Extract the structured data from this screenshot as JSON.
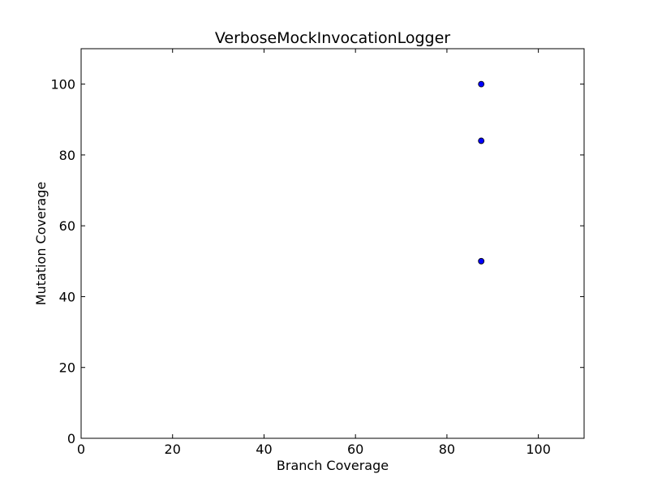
{
  "chart_data": {
    "type": "scatter",
    "title": "VerboseMockInvocationLogger",
    "xlabel": "Branch Coverage",
    "ylabel": "Mutation Coverage",
    "xlim": [
      0,
      110
    ],
    "ylim": [
      0,
      110
    ],
    "xticks": [
      0,
      20,
      40,
      60,
      80,
      100
    ],
    "yticks": [
      0,
      20,
      40,
      60,
      80,
      100
    ],
    "grid": false,
    "series": [
      {
        "x": [
          87.5,
          87.5,
          87.5
        ],
        "y": [
          100,
          84,
          50
        ],
        "color": "#0000ff",
        "edge_color": "#000000"
      }
    ]
  }
}
